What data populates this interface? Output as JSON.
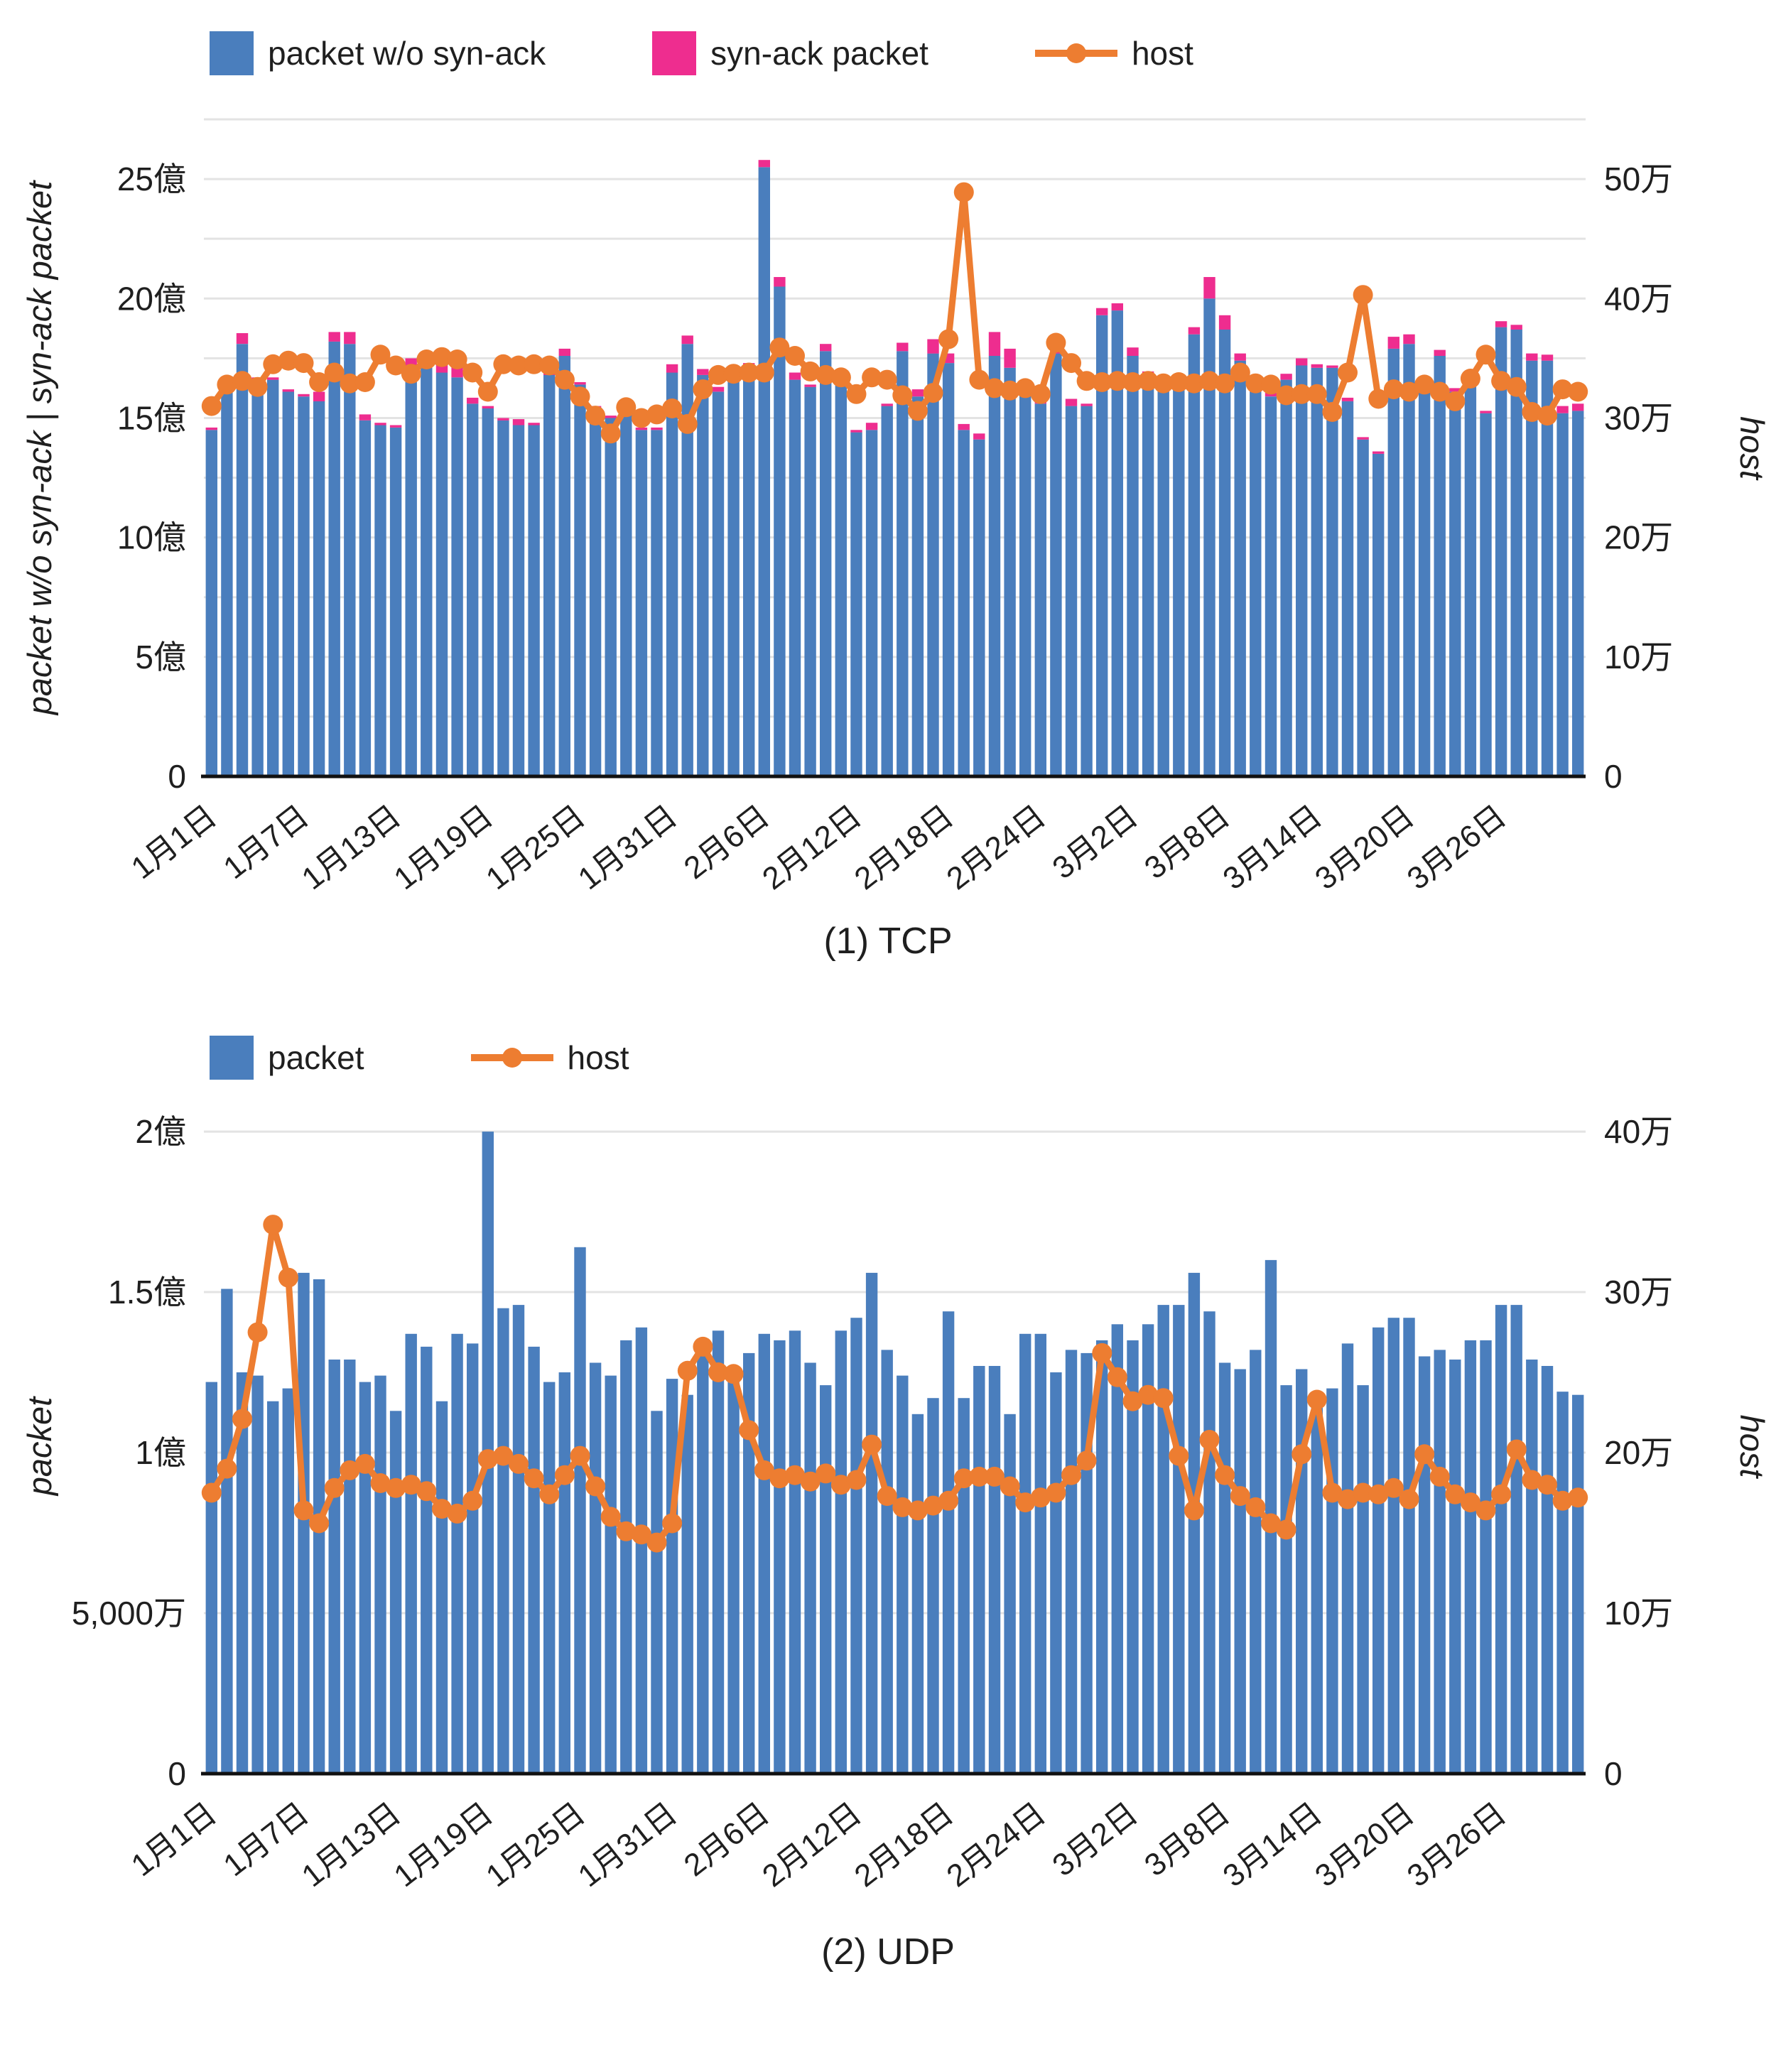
{
  "colors": {
    "bar_blue": "#4a7ebd",
    "bar_pink": "#ee2d8f",
    "line_orange": "#ed7d31",
    "gridline": "#e3e3e3",
    "axis_line": "#111111",
    "text": "#1f1f1f"
  },
  "chart_data": [
    {
      "id": "tcp",
      "type": "stacked-bar+line",
      "caption": "(1) TCP",
      "legend": [
        {
          "label": "packet w/o syn-ack",
          "swatch": "blue-square"
        },
        {
          "label": "syn-ack packet",
          "swatch": "pink-square"
        },
        {
          "label": "host",
          "swatch": "orange-line-dot"
        }
      ],
      "ylabel_left": "packet w/o syn-ack | syn-ack packet",
      "ylabel_right": "host",
      "yticks_left": {
        "labels": [
          "0",
          "5億",
          "10億",
          "15億",
          "20億",
          "25億"
        ],
        "values_oku": [
          0,
          5,
          10,
          15,
          20,
          25
        ]
      },
      "yticks_right": {
        "labels": [
          "0",
          "10万",
          "20万",
          "30万",
          "40万",
          "50万"
        ],
        "values_man": [
          0,
          10,
          20,
          30,
          40,
          50
        ]
      },
      "ylim_left_oku": [
        0,
        27.5
      ],
      "ylim_right_man": [
        0,
        55
      ],
      "grid_step_oku": 2.5,
      "xticks": {
        "labels": [
          "1月1日",
          "1月7日",
          "1月13日",
          "1月19日",
          "1月25日",
          "1月31日",
          "2月6日",
          "2月12日",
          "2月18日",
          "2月24日",
          "3月2日",
          "3月8日",
          "3月14日",
          "3月20日",
          "3月26日"
        ],
        "day_indices": [
          0,
          6,
          12,
          18,
          24,
          30,
          36,
          42,
          48,
          54,
          60,
          66,
          72,
          78,
          84
        ]
      },
      "categories": [
        "1月1日",
        "1月2日",
        "1月3日",
        "1月4日",
        "1月5日",
        "1月6日",
        "1月7日",
        "1月8日",
        "1月9日",
        "1月10日",
        "1月11日",
        "1月12日",
        "1月13日",
        "1月14日",
        "1月15日",
        "1月16日",
        "1月17日",
        "1月18日",
        "1月19日",
        "1月20日",
        "1月21日",
        "1月22日",
        "1月23日",
        "1月24日",
        "1月25日",
        "1月26日",
        "1月27日",
        "1月28日",
        "1月29日",
        "1月30日",
        "1月31日",
        "2月1日",
        "2月2日",
        "2月3日",
        "2月4日",
        "2月5日",
        "2月6日",
        "2月7日",
        "2月8日",
        "2月9日",
        "2月10日",
        "2月11日",
        "2月12日",
        "2月13日",
        "2月14日",
        "2月15日",
        "2月16日",
        "2月17日",
        "2月18日",
        "2月19日",
        "2月20日",
        "2月21日",
        "2月22日",
        "2月23日",
        "2月24日",
        "2月25日",
        "2月26日",
        "2月27日",
        "2月28日",
        "3月1日",
        "3月2日",
        "3月3日",
        "3月4日",
        "3月5日",
        "3月6日",
        "3月7日",
        "3月8日",
        "3月9日",
        "3月10日",
        "3月11日",
        "3月12日",
        "3月13日",
        "3月14日",
        "3月15日",
        "3月16日",
        "3月17日",
        "3月18日",
        "3月19日",
        "3月20日",
        "3月21日",
        "3月22日",
        "3月23日",
        "3月24日",
        "3月25日",
        "3月26日",
        "3月27日",
        "3月28日",
        "3月29日",
        "3月30日",
        "3月31日"
      ],
      "series": [
        {
          "name": "packet w/o syn-ack",
          "type": "bar",
          "color": "bar_blue",
          "unit": "億",
          "values": [
            14.5,
            16.1,
            18.1,
            16.6,
            16.6,
            16.1,
            15.9,
            15.7,
            18.2,
            18.1,
            14.9,
            14.7,
            14.6,
            17.2,
            17.4,
            16.9,
            16.7,
            15.6,
            15.4,
            14.9,
            14.7,
            14.7,
            16.8,
            17.6,
            16.4,
            15.3,
            15.0,
            15.4,
            14.5,
            14.5,
            16.9,
            18.1,
            16.8,
            16.1,
            17.0,
            17.0,
            25.5,
            20.5,
            16.6,
            16.3,
            17.8,
            16.6,
            14.4,
            14.5,
            15.5,
            17.8,
            15.9,
            17.7,
            17.3,
            14.5,
            14.1,
            17.6,
            17.1,
            16.0,
            15.6,
            17.7,
            15.5,
            15.5,
            19.3,
            19.5,
            17.6,
            16.7,
            16.4,
            16.3,
            18.5,
            20.0,
            18.7,
            17.4,
            16.1,
            15.9,
            16.6,
            17.2,
            17.1,
            17.1,
            15.7,
            14.1,
            13.5,
            17.9,
            18.1,
            16.4,
            17.6,
            16.1,
            16.4,
            15.2,
            18.8,
            18.7,
            17.4,
            17.4,
            15.2,
            15.3
          ]
        },
        {
          "name": "syn-ack packet",
          "type": "bar",
          "color": "bar_pink",
          "unit": "億",
          "values": [
            0.1,
            0.1,
            0.45,
            0.1,
            0.1,
            0.1,
            0.1,
            0.4,
            0.4,
            0.5,
            0.25,
            0.1,
            0.1,
            0.3,
            0.25,
            0.35,
            0.55,
            0.25,
            0.1,
            0.1,
            0.25,
            0.1,
            0.4,
            0.3,
            0.1,
            0.2,
            0.1,
            0.1,
            0.1,
            0.1,
            0.35,
            0.35,
            0.25,
            0.2,
            0.1,
            0.3,
            0.3,
            0.4,
            0.3,
            0.1,
            0.3,
            0.25,
            0.1,
            0.3,
            0.1,
            0.35,
            0.3,
            0.6,
            0.4,
            0.25,
            0.25,
            1.0,
            0.8,
            0.55,
            0.25,
            0.35,
            0.3,
            0.1,
            0.3,
            0.3,
            0.35,
            0.25,
            0.2,
            0.2,
            0.3,
            0.9,
            0.6,
            0.3,
            0.2,
            0.15,
            0.25,
            0.3,
            0.15,
            0.1,
            0.15,
            0.1,
            0.1,
            0.5,
            0.4,
            0.2,
            0.25,
            0.15,
            0.15,
            0.1,
            0.25,
            0.2,
            0.3,
            0.25,
            0.3,
            0.3
          ]
        },
        {
          "name": "host",
          "type": "line",
          "axis": "right",
          "color": "line_orange",
          "unit": "万",
          "values": [
            31.0,
            32.8,
            33.1,
            32.6,
            34.5,
            34.8,
            34.6,
            33.0,
            33.8,
            32.9,
            33.0,
            35.3,
            34.4,
            33.7,
            34.9,
            35.1,
            34.9,
            33.8,
            32.2,
            34.5,
            34.4,
            34.5,
            34.4,
            33.2,
            31.8,
            30.2,
            28.7,
            30.9,
            30.0,
            30.3,
            30.8,
            29.5,
            32.4,
            33.6,
            33.7,
            33.8,
            33.8,
            35.9,
            35.2,
            33.9,
            33.6,
            33.4,
            32.0,
            33.4,
            33.2,
            31.9,
            30.6,
            32.1,
            36.6,
            48.9,
            33.2,
            32.5,
            32.3,
            32.5,
            32.0,
            36.3,
            34.6,
            33.1,
            33.0,
            33.1,
            33.0,
            33.1,
            32.9,
            33.0,
            32.9,
            33.1,
            32.9,
            33.8,
            32.9,
            32.8,
            31.9,
            32.0,
            32.0,
            30.5,
            33.8,
            40.3,
            31.6,
            32.4,
            32.2,
            32.8,
            32.2,
            31.4,
            33.3,
            35.3,
            33.1,
            32.6,
            30.5,
            30.2,
            32.4,
            32.2
          ]
        }
      ]
    },
    {
      "id": "udp",
      "type": "bar+line",
      "caption": "(2) UDP",
      "legend": [
        {
          "label": "packet",
          "swatch": "blue-square"
        },
        {
          "label": "host",
          "swatch": "orange-line-dot"
        }
      ],
      "ylabel_left": "packet",
      "ylabel_right": "host",
      "yticks_left": {
        "labels": [
          "0",
          "5,000万",
          "1億",
          "1.5億",
          "2億"
        ],
        "values_oku": [
          0,
          0.5,
          1,
          1.5,
          2
        ]
      },
      "yticks_right": {
        "labels": [
          "0",
          "10万",
          "20万",
          "30万",
          "40万"
        ],
        "values_man": [
          0,
          10,
          20,
          30,
          40
        ]
      },
      "ylim_left_oku": [
        0,
        2.04
      ],
      "ylim_right_man": [
        0,
        40.8
      ],
      "grid_step_oku": 0.5,
      "xticks": {
        "labels": [
          "1月1日",
          "1月7日",
          "1月13日",
          "1月19日",
          "1月25日",
          "1月31日",
          "2月6日",
          "2月12日",
          "2月18日",
          "2月24日",
          "3月2日",
          "3月8日",
          "3月14日",
          "3月20日",
          "3月26日"
        ],
        "day_indices": [
          0,
          6,
          12,
          18,
          24,
          30,
          36,
          42,
          48,
          54,
          60,
          66,
          72,
          78,
          84
        ]
      },
      "categories": [
        "1月1日",
        "1月2日",
        "1月3日",
        "1月4日",
        "1月5日",
        "1月6日",
        "1月7日",
        "1月8日",
        "1月9日",
        "1月10日",
        "1月11日",
        "1月12日",
        "1月13日",
        "1月14日",
        "1月15日",
        "1月16日",
        "1月17日",
        "1月18日",
        "1月19日",
        "1月20日",
        "1月21日",
        "1月22日",
        "1月23日",
        "1月24日",
        "1月25日",
        "1月26日",
        "1月27日",
        "1月28日",
        "1月29日",
        "1月30日",
        "1月31日",
        "2月1日",
        "2月2日",
        "2月3日",
        "2月4日",
        "2月5日",
        "2月6日",
        "2月7日",
        "2月8日",
        "2月9日",
        "2月10日",
        "2月11日",
        "2月12日",
        "2月13日",
        "2月14日",
        "2月15日",
        "2月16日",
        "2月17日",
        "2月18日",
        "2月19日",
        "2月20日",
        "2月21日",
        "2月22日",
        "2月23日",
        "2月24日",
        "2月25日",
        "2月26日",
        "2月27日",
        "2月28日",
        "3月1日",
        "3月2日",
        "3月3日",
        "3月4日",
        "3月5日",
        "3月6日",
        "3月7日",
        "3月8日",
        "3月9日",
        "3月10日",
        "3月11日",
        "3月12日",
        "3月13日",
        "3月14日",
        "3月15日",
        "3月16日",
        "3月17日",
        "3月18日",
        "3月19日",
        "3月20日",
        "3月21日",
        "3月22日",
        "3月23日",
        "3月24日",
        "3月25日",
        "3月26日",
        "3月27日",
        "3月28日",
        "3月29日",
        "3月30日",
        "3月31日"
      ],
      "series": [
        {
          "name": "packet",
          "type": "bar",
          "color": "bar_blue",
          "unit": "億",
          "values": [
            1.22,
            1.51,
            1.25,
            1.24,
            1.16,
            1.2,
            1.56,
            1.54,
            1.29,
            1.29,
            1.22,
            1.24,
            1.13,
            1.37,
            1.33,
            1.16,
            1.37,
            1.34,
            2.0,
            1.45,
            1.46,
            1.33,
            1.22,
            1.25,
            1.64,
            1.28,
            1.24,
            1.35,
            1.39,
            1.13,
            1.23,
            1.18,
            1.33,
            1.38,
            1.27,
            1.31,
            1.37,
            1.35,
            1.38,
            1.28,
            1.21,
            1.38,
            1.42,
            1.56,
            1.32,
            1.24,
            1.12,
            1.17,
            1.44,
            1.17,
            1.27,
            1.27,
            1.12,
            1.37,
            1.37,
            1.25,
            1.32,
            1.31,
            1.35,
            1.4,
            1.35,
            1.4,
            1.46,
            1.46,
            1.56,
            1.44,
            1.28,
            1.26,
            1.32,
            1.6,
            1.21,
            1.26,
            1.17,
            1.2,
            1.34,
            1.21,
            1.39,
            1.42,
            1.42,
            1.3,
            1.32,
            1.29,
            1.35,
            1.35,
            1.46,
            1.46,
            1.29,
            1.27,
            1.19,
            1.18
          ]
        },
        {
          "name": "host",
          "type": "line",
          "axis": "right",
          "color": "line_orange",
          "unit": "万",
          "values": [
            17.5,
            19.0,
            22.1,
            27.5,
            34.2,
            30.9,
            16.4,
            15.6,
            17.8,
            18.9,
            19.3,
            18.1,
            17.8,
            18.0,
            17.6,
            16.5,
            16.2,
            17.0,
            19.6,
            19.8,
            19.3,
            18.4,
            17.4,
            18.6,
            19.8,
            17.9,
            16.0,
            15.1,
            14.9,
            14.4,
            15.6,
            25.1,
            26.6,
            25.0,
            24.9,
            21.4,
            18.9,
            18.4,
            18.6,
            18.2,
            18.7,
            18.0,
            18.3,
            20.5,
            17.3,
            16.6,
            16.4,
            16.7,
            17.0,
            18.4,
            18.5,
            18.5,
            17.9,
            16.9,
            17.2,
            17.5,
            18.6,
            19.5,
            26.2,
            24.7,
            23.2,
            23.6,
            23.4,
            19.8,
            16.4,
            20.8,
            18.6,
            17.3,
            16.6,
            15.6,
            15.2,
            19.9,
            23.3,
            17.5,
            17.1,
            17.5,
            17.4,
            17.8,
            17.1,
            19.9,
            18.5,
            17.4,
            16.9,
            16.4,
            17.4,
            20.2,
            18.3,
            18.0,
            17.0,
            17.2
          ]
        }
      ]
    }
  ]
}
